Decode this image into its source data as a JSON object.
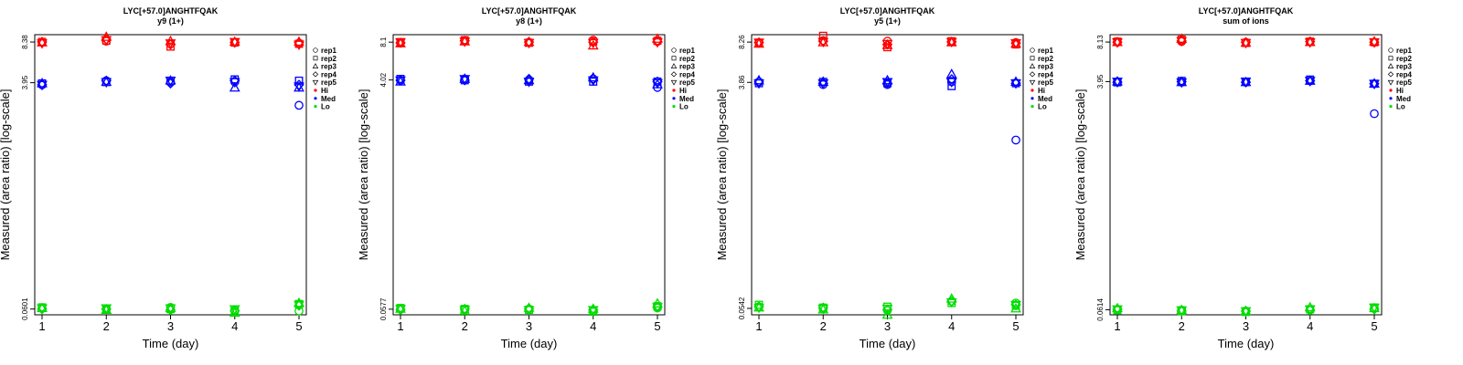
{
  "figure": {
    "replicate_markers": {
      "rep1": "circle",
      "rep2": "square",
      "rep3": "triangle-up",
      "rep4": "diamond",
      "rep5": "triangle-down"
    },
    "legend_placement": "right, outside plot area",
    "colors": {
      "Hi": "#ff0000",
      "Med": "#0000ff",
      "Lo": "#00dd00"
    }
  },
  "chart_data": [
    {
      "type": "scatter",
      "title": "LYC[+57.0]ANGHTFQAK",
      "subtitle": "y9 (1+)",
      "xlabel": "Time (day)",
      "ylabel": "Measured (area ratio) [log-scale]",
      "log_y": true,
      "x_ticks": [
        "1",
        "2",
        "3",
        "4",
        "5"
      ],
      "y_ticks": [
        "0.0601",
        "3.95",
        "8.38"
      ],
      "ylim": [
        0.054,
        9.6
      ],
      "legend": [
        "rep1",
        "rep2",
        "rep3",
        "rep4",
        "rep5",
        "Hi",
        "Med",
        "Lo"
      ],
      "series": [
        {
          "name": "Hi",
          "color": "#ff0000",
          "replicates": [
            [
              8.3,
              8.5,
              8.1,
              8.3,
              8.2
            ],
            [
              8.4,
              8.6,
              7.7,
              8.3,
              8.1
            ],
            [
              8.3,
              9.2,
              8.5,
              8.4,
              8.4
            ],
            [
              8.4,
              8.8,
              8.0,
              8.3,
              8.3
            ],
            [
              8.2,
              8.7,
              8.2,
              8.4,
              8.0
            ]
          ]
        },
        {
          "name": "Med",
          "color": "#0000ff",
          "replicates": [
            [
              3.8,
              4.1,
              4.0,
              4.0,
              2.6
            ],
            [
              3.9,
              4.0,
              4.1,
              4.2,
              4.1
            ],
            [
              3.9,
              4.0,
              4.1,
              3.6,
              3.6
            ],
            [
              3.8,
              4.1,
              3.9,
              4.1,
              3.8
            ],
            [
              3.8,
              4.0,
              4.1,
              4.0,
              3.7
            ]
          ]
        },
        {
          "name": "Lo",
          "color": "#00dd00",
          "replicates": [
            [
              0.061,
              0.06,
              0.062,
              0.059,
              0.058
            ],
            [
              0.062,
              0.06,
              0.06,
              0.057,
              0.066
            ],
            [
              0.061,
              0.059,
              0.061,
              0.056,
              0.067
            ],
            [
              0.06,
              0.06,
              0.059,
              0.058,
              0.064
            ],
            [
              0.061,
              0.061,
              0.061,
              0.06,
              0.065
            ]
          ]
        }
      ]
    },
    {
      "type": "scatter",
      "title": "LYC[+57.0]ANGHTFQAK",
      "subtitle": "y8 (1+)",
      "xlabel": "Time (day)",
      "ylabel": "Measured (area ratio) [log-scale]",
      "log_y": true,
      "x_ticks": [
        "1",
        "2",
        "3",
        "4",
        "5"
      ],
      "y_ticks": [
        "0.0577",
        "4.02",
        "8.1"
      ],
      "ylim": [
        0.052,
        9.3
      ],
      "legend": [
        "rep1",
        "rep2",
        "rep3",
        "rep4",
        "rep5",
        "Hi",
        "Med",
        "Lo"
      ],
      "series": [
        {
          "name": "Hi",
          "color": "#ff0000",
          "replicates": [
            [
              8.0,
              8.3,
              8.1,
              8.4,
              8.2
            ],
            [
              8.1,
              8.4,
              8.0,
              8.2,
              8.3
            ],
            [
              7.9,
              8.2,
              8.1,
              7.6,
              8.6
            ],
            [
              8.0,
              8.3,
              8.1,
              8.1,
              8.2
            ],
            [
              8.1,
              8.2,
              8.0,
              8.0,
              8.1
            ]
          ]
        },
        {
          "name": "Med",
          "color": "#0000ff",
          "replicates": [
            [
              4.0,
              4.1,
              4.0,
              4.1,
              3.5
            ],
            [
              4.1,
              4.0,
              3.9,
              3.9,
              3.9
            ],
            [
              3.9,
              4.1,
              4.0,
              4.2,
              3.7
            ],
            [
              4.0,
              4.0,
              4.1,
              4.1,
              3.9
            ],
            [
              4.0,
              4.1,
              3.9,
              4.0,
              3.8
            ]
          ]
        },
        {
          "name": "Lo",
          "color": "#00dd00",
          "replicates": [
            [
              0.058,
              0.057,
              0.058,
              0.056,
              0.059
            ],
            [
              0.059,
              0.058,
              0.057,
              0.055,
              0.061
            ],
            [
              0.058,
              0.056,
              0.059,
              0.058,
              0.064
            ],
            [
              0.057,
              0.058,
              0.058,
              0.057,
              0.06
            ],
            [
              0.058,
              0.057,
              0.057,
              0.057,
              0.06
            ]
          ]
        }
      ]
    },
    {
      "type": "scatter",
      "title": "LYC[+57.0]ANGHTFQAK",
      "subtitle": "y5 (1+)",
      "xlabel": "Time (day)",
      "ylabel": "Measured (area ratio) [log-scale]",
      "log_y": true,
      "x_ticks": [
        "1",
        "2",
        "3",
        "4",
        "5"
      ],
      "y_ticks": [
        "0.0542",
        "3.86",
        "8.26"
      ],
      "ylim": [
        0.048,
        9.5
      ],
      "legend": [
        "rep1",
        "rep2",
        "rep3",
        "rep4",
        "rep5",
        "Hi",
        "Med",
        "Lo"
      ],
      "series": [
        {
          "name": "Hi",
          "color": "#ff0000",
          "replicates": [
            [
              8.2,
              8.5,
              8.4,
              8.3,
              8.2
            ],
            [
              8.1,
              9.3,
              7.5,
              8.4,
              7.9
            ],
            [
              8.0,
              8.2,
              7.8,
              8.2,
              8.0
            ],
            [
              8.2,
              8.4,
              7.9,
              8.3,
              8.1
            ],
            [
              8.2,
              8.3,
              8.0,
              8.3,
              8.1
            ]
          ]
        },
        {
          "name": "Med",
          "color": "#0000ff",
          "replicates": [
            [
              3.9,
              3.7,
              3.7,
              3.9,
              1.3
            ],
            [
              3.8,
              3.9,
              3.8,
              3.6,
              3.8
            ],
            [
              4.0,
              3.9,
              4.0,
              4.5,
              3.9
            ],
            [
              3.9,
              3.8,
              3.8,
              4.1,
              3.8
            ],
            [
              3.8,
              3.8,
              3.9,
              3.9,
              3.8
            ]
          ]
        },
        {
          "name": "Lo",
          "color": "#00dd00",
          "replicates": [
            [
              0.056,
              0.054,
              0.052,
              0.062,
              0.06
            ],
            [
              0.058,
              0.055,
              0.056,
              0.06,
              0.057
            ],
            [
              0.055,
              0.053,
              0.048,
              0.065,
              0.054
            ],
            [
              0.056,
              0.055,
              0.053,
              0.062,
              0.058
            ],
            [
              0.055,
              0.054,
              0.054,
              0.061,
              0.058
            ]
          ]
        }
      ]
    },
    {
      "type": "scatter",
      "title": "LYC[+57.0]ANGHTFQAK",
      "subtitle": "sum of ions",
      "xlabel": "Time (day)",
      "ylabel": "Measured (area ratio) [log-scale]",
      "log_y": true,
      "x_ticks": [
        "1",
        "2",
        "3",
        "4",
        "5"
      ],
      "y_ticks": [
        "0.0614",
        "3.95",
        "8.13"
      ],
      "ylim": [
        0.056,
        9.3
      ],
      "legend": [
        "rep1",
        "rep2",
        "rep3",
        "rep4",
        "rep5",
        "Hi",
        "Med",
        "Lo"
      ],
      "series": [
        {
          "name": "Hi",
          "color": "#ff0000",
          "replicates": [
            [
              8.1,
              8.2,
              8.1,
              8.2,
              8.1
            ],
            [
              8.2,
              8.5,
              8.0,
              8.2,
              8.1
            ],
            [
              8.1,
              8.6,
              8.0,
              8.1,
              8.2
            ],
            [
              8.1,
              8.3,
              8.1,
              8.2,
              8.1
            ],
            [
              8.1,
              8.3,
              8.0,
              8.1,
              8.1
            ]
          ]
        },
        {
          "name": "Med",
          "color": "#0000ff",
          "replicates": [
            [
              3.95,
              3.9,
              3.9,
              4.0,
              2.2
            ],
            [
              3.9,
              4.0,
              3.95,
              4.1,
              3.8
            ],
            [
              3.95,
              3.9,
              3.9,
              4.0,
              3.8
            ],
            [
              3.9,
              3.95,
              3.9,
              4.0,
              3.8
            ],
            [
              3.95,
              3.9,
              3.95,
              4.0,
              3.8
            ]
          ]
        },
        {
          "name": "Lo",
          "color": "#00dd00",
          "replicates": [
            [
              0.062,
              0.061,
              0.06,
              0.061,
              0.063
            ],
            [
              0.061,
              0.06,
              0.059,
              0.062,
              0.064
            ],
            [
              0.063,
              0.061,
              0.06,
              0.064,
              0.063
            ],
            [
              0.062,
              0.06,
              0.06,
              0.061,
              0.062
            ],
            [
              0.062,
              0.061,
              0.06,
              0.062,
              0.064
            ]
          ]
        }
      ]
    }
  ]
}
